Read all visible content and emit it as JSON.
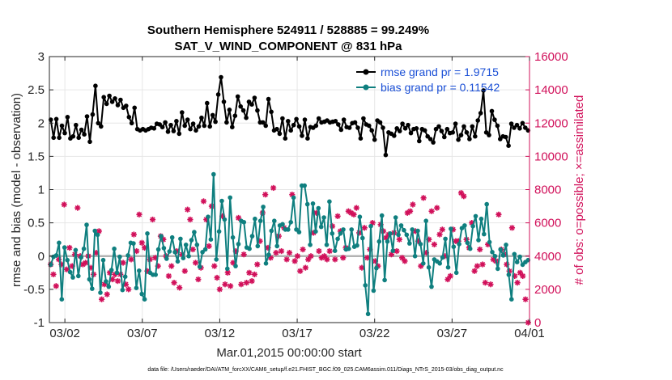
{
  "chart_data": {
    "type": "line",
    "title": "Southern Hemisphere 524911 / 528885 = 99.249%",
    "subtitle": "SAT_V_WIND_COMPONENT @ 831 hPa",
    "xlabel": "Mar.01,2015 00:00:00 start",
    "ylabel": "rmse and bias (model - observation)",
    "ylabel_right": "# of obs: o=possible; ×=assimilated",
    "footer": "data file: /Users/raeder/DAI/ATM_forcXX/CAM6_setup/f.e21.FHIST_BGC.f09_025.CAM6assim.011/Diags_NTrS_2015-03/obs_diag_output.nc",
    "x_range_days": [
      0,
      31
    ],
    "x_ticks": [
      {
        "day": 1,
        "label": "03/02"
      },
      {
        "day": 6,
        "label": "03/07"
      },
      {
        "day": 11,
        "label": "03/12"
      },
      {
        "day": 16,
        "label": "03/17"
      },
      {
        "day": 21,
        "label": "03/22"
      },
      {
        "day": 26,
        "label": "03/27"
      },
      {
        "day": 31,
        "label": "04/01"
      }
    ],
    "ylim": [
      -1,
      3
    ],
    "y_ticks": [
      "-1",
      "-0.5",
      "0",
      "0.5",
      "1",
      "1.5",
      "2",
      "2.5",
      "3"
    ],
    "ylim_right": [
      0,
      16000
    ],
    "y_ticks_right": [
      "0",
      "2000",
      "4000",
      "6000",
      "8000",
      "10000",
      "12000",
      "14000",
      "16000"
    ],
    "grid": true,
    "legend_position": "top-right",
    "series": [
      {
        "name": "rmse grand pr = 1.9715",
        "color": "#000000",
        "values": [
          2.05,
          1.78,
          2.06,
          1.78,
          1.96,
          1.85,
          2.09,
          1.77,
          1.8,
          1.97,
          1.78,
          1.9,
          1.83,
          2.1,
          1.72,
          2.13,
          2.56,
          2.0,
          1.95,
          2.39,
          2.29,
          2.41,
          2.32,
          2.37,
          2.27,
          2.35,
          2.23,
          2.26,
          2.09,
          2.0,
          2.23,
          1.91,
          1.89,
          1.91,
          1.89,
          1.91,
          1.93,
          1.92,
          1.99,
          1.98,
          1.94,
          2.01,
          1.87,
          1.97,
          1.88,
          2.03,
          1.84,
          2.16,
          1.96,
          2.05,
          1.91,
          1.99,
          1.89,
          1.95,
          2.08,
          1.96,
          2.3,
          1.95,
          2.12,
          2.02,
          2.43,
          2.69,
          2.32,
          2.01,
          2.2,
          1.94,
          2.11,
          2.4,
          2.25,
          2.19,
          2.08,
          2.32,
          2.28,
          2.38,
          2.19,
          2.01,
          2.01,
          1.96,
          2.36,
          2.17,
          1.89,
          1.91,
          1.84,
          2.07,
          1.77,
          2.03,
          1.89,
          1.97,
          2.06,
          1.95,
          1.81,
          2.05,
          1.77,
          1.94,
          1.93,
          1.96,
          2.07,
          2.01,
          2.02,
          2.04,
          2.01,
          2.02,
          2.03,
          1.98,
          1.9,
          2.05,
          1.94,
          1.93,
          2.0,
          2.01,
          1.93,
          1.77,
          2.07,
          1.98,
          1.96,
          1.89,
          1.75,
          2.04,
          2.01,
          1.93,
          1.52,
          1.86,
          1.84,
          1.81,
          1.92,
          1.88,
          1.99,
          1.92,
          1.97,
          1.85,
          1.91,
          1.92,
          1.73,
          1.91,
          1.89,
          1.8,
          1.76,
          1.71,
          1.91,
          1.95,
          1.88,
          1.79,
          1.91,
          1.85,
          1.86,
          1.99,
          1.75,
          1.82,
          1.95,
          1.86,
          1.76,
          1.95,
          1.8,
          2.04,
          2.15,
          2.49,
          1.86,
          1.82,
          2.18,
          2.05,
          1.96,
          1.76,
          1.8,
          1.79,
          1.66,
          1.99,
          1.93,
          1.97,
          1.92,
          2.0,
          1.93,
          1.89
        ]
      },
      {
        "name": "bias grand pr = 0.11542",
        "color": "#0f7f7f",
        "values": [
          -0.13,
          -0.01,
          0.01,
          0.2,
          -0.65,
          0.13,
          -0.06,
          -0.24,
          -0.32,
          0.09,
          -0.3,
          -0.02,
          0.11,
          0.47,
          -0.35,
          -0.49,
          0.38,
          0.32,
          -0.55,
          -0.06,
          -0.38,
          -0.46,
          -0.21,
          0.11,
          -0.25,
          -0.01,
          -0.51,
          -0.31,
          0.01,
          0.2,
          0.19,
          -0.48,
          -0.22,
          -0.57,
          -0.65,
          0.34,
          -0.25,
          -0.28,
          -0.28,
          0.1,
          0.3,
          0.12,
          -0.04,
          0.07,
          0.28,
          0.06,
          -0.08,
          0.26,
          -0.03,
          0.17,
          0.0,
          0.24,
          0.36,
          0.17,
          -0.16,
          0.06,
          0.1,
          0.59,
          0.25,
          1.23,
          -0.05,
          0.37,
          0.83,
          0.55,
          -0.19,
          0.88,
          0.28,
          -0.15,
          0.18,
          0.53,
          0.51,
          0.13,
          0.11,
          0.3,
          0.56,
          0.15,
          0.53,
          0.74,
          -0.11,
          0.02,
          0.38,
          0.53,
          0.15,
          0.46,
          0.48,
          0.4,
          0.4,
          0.51,
          0.88,
          0.4,
          0.36,
          1.06,
          1.06,
          0.78,
          0.17,
          0.79,
          0.37,
          0.72,
          0.44,
          0.58,
          0.17,
          0.82,
          0.34,
          0.08,
          0.26,
          0.34,
          0.4,
          0.1,
          0.11,
          0.4,
          0.14,
          0.16,
          0.59,
          0.27,
          -0.44,
          -0.87,
          0.45,
          -0.52,
          -0.18,
          0.22,
          0.61,
          -0.36,
          0.22,
          0.34,
          0.08,
          0.58,
          0.32,
          0.46,
          0.39,
          0.32,
          0.19,
          0.4,
          0.0,
          0.38,
          0.18,
          -0.11,
          0.53,
          -0.17,
          -0.46,
          -0.05,
          -0.08,
          -0.11,
          -0.02,
          0.26,
          -0.17,
          0.41,
          0.14,
          -0.25,
          0.18,
          0.42,
          0.46,
          0.2,
          0.11,
          0.45,
          0.6,
          0.24,
          0.56,
          0.33,
          0.78,
          0.21,
          0.06,
          0.0,
          -0.19,
          0.1,
          0.01,
          0.17,
          -0.28,
          -0.65,
          0.03,
          -0.09,
          -0.01,
          -0.13,
          -0.09,
          -0.06
        ]
      }
    ],
    "obs_possible_scatter": {
      "marker": "o",
      "values": [
        3500,
        2900,
        2200,
        3800,
        3500,
        7100,
        3200,
        4500,
        3400,
        4100,
        6900,
        4000,
        3500,
        3600,
        4000,
        3300,
        2900,
        4200,
        5500,
        1400,
        2300,
        1700,
        3000,
        2600,
        2900,
        2500,
        2900,
        3600,
        2300,
        2000,
        3800,
        5300,
        4300,
        6500,
        4800,
        4500,
        3100,
        3800,
        6200,
        3900,
        3400,
        5200,
        5000,
        4000,
        2800,
        3400,
        2400,
        4300,
        2100,
        4100,
        3100,
        6800,
        6200,
        4400,
        3600,
        2600,
        3300,
        7300,
        6200,
        4600,
        7000,
        3400,
        2700,
        2000,
        6400,
        2300,
        3000,
        2200,
        3600,
        4300,
        6300,
        2300,
        4100,
        2400,
        3000,
        2500,
        2900,
        3500,
        4900,
        6600,
        7700,
        4500,
        3900,
        8100,
        4200,
        5200,
        4300,
        5700,
        3800,
        4200,
        7700,
        3700,
        4000,
        3100,
        4400,
        3300,
        3800,
        4000,
        5400,
        6600,
        4300,
        3900,
        4000,
        3800,
        4300,
        5800,
        3800,
        6400,
        5500,
        3900,
        4500,
        6700,
        6600,
        6500,
        6900,
        5400,
        3300,
        5700,
        3900,
        4400,
        6000,
        3700,
        3400,
        5900,
        5500,
        5100,
        5300,
        4100,
        5400,
        4300,
        5000,
        3900,
        3700,
        6600,
        6700,
        7100,
        5500,
        4900,
        3400,
        7500,
        4200,
        5000,
        6700,
        4700,
        6900,
        5300,
        5600,
        4000,
        2600,
        2800,
        5600,
        4900,
        4900,
        7800,
        7600,
        5000,
        4500,
        6000,
        3100,
        3400,
        4400,
        3500,
        2400,
        4700,
        2300,
        3800,
        3700,
        6500,
        4400,
        4100,
        3500,
        3100,
        5700,
        2800,
        2400,
        3000,
        2800,
        1400,
        0
      ]
    }
  },
  "legend": {
    "rmse_label": "rmse grand pr = 1.9715",
    "bias_label": "bias grand pr = 0.11542"
  }
}
